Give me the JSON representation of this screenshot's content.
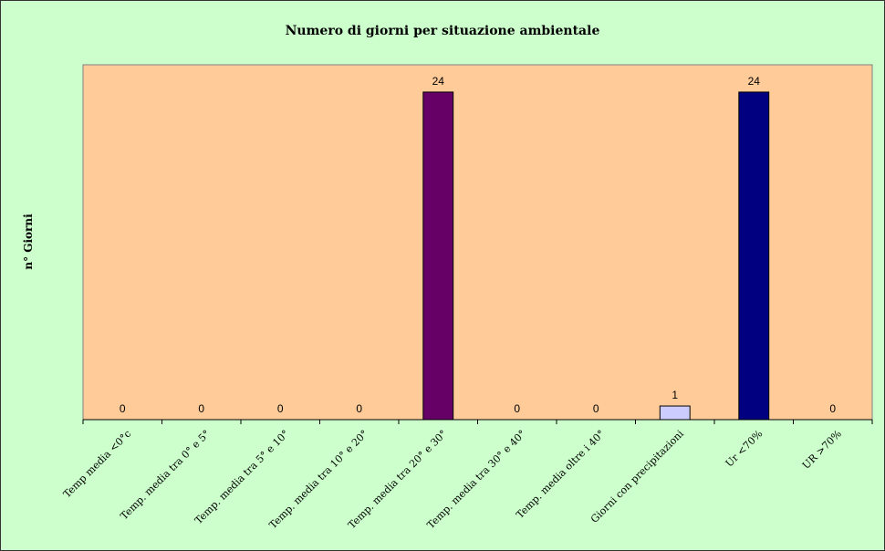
{
  "chart_data": {
    "type": "bar",
    "title": "Numero di giorni per situazione ambientale",
    "xlabel": "",
    "ylabel": "n° Giorni",
    "ylim": [
      0,
      26
    ],
    "grid": false,
    "legend": "none",
    "categories": [
      "Temp media <0°c",
      "Temp. media tra 0° e 5°",
      "Temp. media tra 5° e 10°",
      "Temp. media tra 10° e 20°",
      "Temp. media tra 20° e 30°",
      "Temp. media tra 30° e 40°",
      "Temp. media oltre i 40°",
      "Giorni con precipitazioni",
      "Ur <70%",
      "UR >70%"
    ],
    "values": [
      0,
      0,
      0,
      0,
      24,
      0,
      0,
      1,
      24,
      0
    ],
    "bar_colors": [
      "#9999ff",
      "#993366",
      "#ffffcc",
      "#ccffff",
      "#660066",
      "#ff8080",
      "#0066cc",
      "#ccccff",
      "#000080",
      "#ff00ff"
    ],
    "colors": {
      "chart_background": "#ccffcc",
      "plot_background": "#ffcc99"
    }
  }
}
